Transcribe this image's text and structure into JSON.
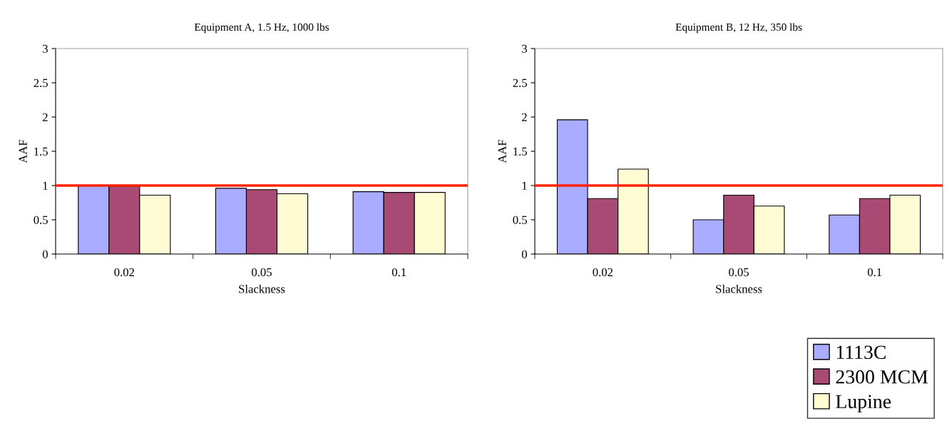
{
  "chart_data": [
    {
      "type": "bar",
      "title": "Equipment A, 1.5 Hz, 1000 lbs",
      "xlabel": "Slackness",
      "ylabel": "AAF",
      "categories": [
        "0.02",
        "0.05",
        "0.1"
      ],
      "ylim": [
        0,
        3
      ],
      "yticks": [
        0,
        0.5,
        1,
        1.5,
        2,
        2.5,
        3
      ],
      "grid": false,
      "legend": "bottom right",
      "series": [
        {
          "name": "1113C",
          "color": "#a9acff",
          "values": [
            1.0,
            0.96,
            0.91
          ]
        },
        {
          "name": "2300 MCM",
          "color": "#a94a74",
          "values": [
            0.99,
            0.94,
            0.9
          ]
        },
        {
          "name": "Lupine",
          "color": "#fffcd4",
          "values": [
            0.86,
            0.88,
            0.9
          ]
        }
      ],
      "ref_lines": [
        {
          "axis": "y",
          "value": 1,
          "color": "#ff2200"
        }
      ]
    },
    {
      "type": "bar",
      "title": "Equipment B, 12 Hz, 350 lbs",
      "xlabel": "Slackness",
      "ylabel": "AAF",
      "categories": [
        "0.02",
        "0.05",
        "0.1"
      ],
      "ylim": [
        0,
        3
      ],
      "yticks": [
        0,
        0.5,
        1,
        1.5,
        2,
        2.5,
        3
      ],
      "grid": false,
      "series": [
        {
          "color": "#a9acff",
          "values": [
            1.96,
            0.5,
            0.57
          ]
        },
        {
          "color": "#a94a74",
          "values": [
            0.81,
            0.86,
            0.81
          ]
        },
        {
          "color": "#fffcd4",
          "values": [
            1.24,
            0.7,
            0.86
          ]
        }
      ],
      "ref_lines": [
        {
          "axis": "y",
          "value": 1,
          "color": "#ff2200"
        }
      ]
    }
  ]
}
